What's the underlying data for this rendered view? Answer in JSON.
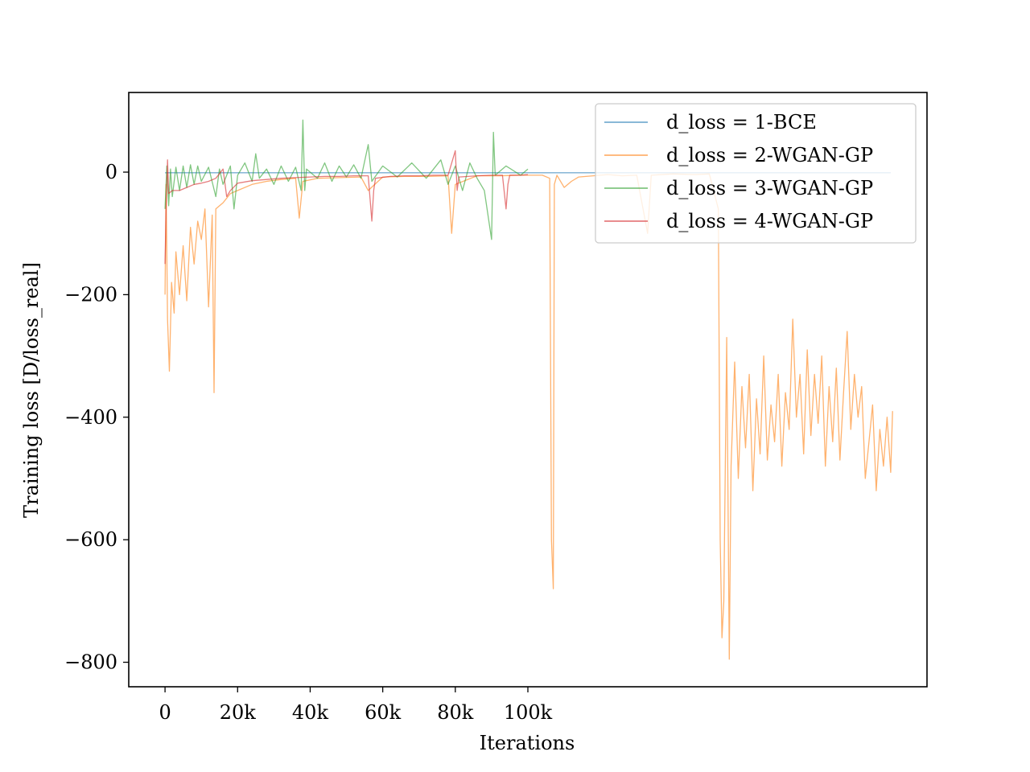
{
  "chart_data": {
    "type": "line",
    "title": "",
    "xlabel": "Iterations",
    "ylabel": "Training loss [D/loss_real]",
    "xlim": [
      -10000,
      210000
    ],
    "ylim": [
      -840,
      130
    ],
    "x_ticks": [
      {
        "value": 0,
        "label": "0"
      },
      {
        "value": 20000,
        "label": "20k"
      },
      {
        "value": 40000,
        "label": "40k"
      },
      {
        "value": 60000,
        "label": "60k"
      },
      {
        "value": 80000,
        "label": "80k"
      },
      {
        "value": 100000,
        "label": "100k"
      }
    ],
    "y_ticks": [
      {
        "value": 0,
        "label": "0"
      },
      {
        "value": -200,
        "label": "−200"
      },
      {
        "value": -400,
        "label": "−400"
      },
      {
        "value": -600,
        "label": "−600"
      },
      {
        "value": -800,
        "label": "−800"
      }
    ],
    "grid": false,
    "legend_position": "top-right",
    "series": [
      {
        "name": "d_loss = 1-BCE",
        "color": "#1f77b4",
        "points": [
          [
            0,
            -1
          ],
          [
            20000,
            -1
          ],
          [
            40000,
            -1
          ],
          [
            60000,
            -1
          ],
          [
            80000,
            -1
          ],
          [
            100000,
            -1
          ],
          [
            120000,
            -1
          ],
          [
            140000,
            -1
          ],
          [
            160000,
            -1
          ],
          [
            180000,
            -1
          ],
          [
            200000,
            -1
          ]
        ]
      },
      {
        "name": "d_loss = 2-WGAN-GP",
        "color": "#ff7f0e",
        "points": [
          [
            0,
            -200
          ],
          [
            300,
            -20
          ],
          [
            700,
            -240
          ],
          [
            1200,
            -325
          ],
          [
            1800,
            -180
          ],
          [
            2500,
            -230
          ],
          [
            3000,
            -130
          ],
          [
            4000,
            -200
          ],
          [
            5000,
            -120
          ],
          [
            6000,
            -210
          ],
          [
            7000,
            -90
          ],
          [
            8000,
            -150
          ],
          [
            9000,
            -80
          ],
          [
            10000,
            -110
          ],
          [
            11000,
            -60
          ],
          [
            12000,
            -220
          ],
          [
            13000,
            -70
          ],
          [
            13500,
            -360
          ],
          [
            14000,
            -60
          ],
          [
            16000,
            -50
          ],
          [
            18000,
            -35
          ],
          [
            20000,
            -30
          ],
          [
            24000,
            -20
          ],
          [
            28000,
            -15
          ],
          [
            32000,
            -12
          ],
          [
            36000,
            -10
          ],
          [
            37000,
            -75
          ],
          [
            38000,
            -15
          ],
          [
            42000,
            -10
          ],
          [
            48000,
            -9
          ],
          [
            54000,
            -8
          ],
          [
            56000,
            -30
          ],
          [
            60000,
            -8
          ],
          [
            66000,
            -7
          ],
          [
            72000,
            -7
          ],
          [
            78000,
            -6
          ],
          [
            79000,
            -100
          ],
          [
            80000,
            -20
          ],
          [
            86000,
            -6
          ],
          [
            92000,
            -6
          ],
          [
            98000,
            -5
          ],
          [
            104000,
            -5
          ],
          [
            106000,
            -10
          ],
          [
            106500,
            -600
          ],
          [
            107000,
            -680
          ],
          [
            107300,
            -20
          ],
          [
            108000,
            -5
          ],
          [
            110000,
            -25
          ],
          [
            112000,
            -15
          ],
          [
            114000,
            -8
          ],
          [
            118000,
            -6
          ],
          [
            122000,
            -4
          ],
          [
            126000,
            -6
          ],
          [
            130000,
            -5
          ],
          [
            133000,
            -100
          ],
          [
            134000,
            -5
          ],
          [
            140000,
            -3
          ],
          [
            146000,
            -4
          ],
          [
            150000,
            -3
          ],
          [
            152500,
            -60
          ],
          [
            153000,
            -600
          ],
          [
            153500,
            -760
          ],
          [
            154000,
            -700
          ],
          [
            154800,
            -270
          ],
          [
            155500,
            -795
          ],
          [
            156000,
            -480
          ],
          [
            157000,
            -310
          ],
          [
            158000,
            -500
          ],
          [
            159000,
            -350
          ],
          [
            160000,
            -450
          ],
          [
            161000,
            -330
          ],
          [
            162000,
            -520
          ],
          [
            163000,
            -370
          ],
          [
            164000,
            -460
          ],
          [
            165000,
            -300
          ],
          [
            166000,
            -470
          ],
          [
            167000,
            -380
          ],
          [
            168000,
            -440
          ],
          [
            169000,
            -330
          ],
          [
            170000,
            -480
          ],
          [
            171000,
            -360
          ],
          [
            172000,
            -420
          ],
          [
            173000,
            -240
          ],
          [
            174000,
            -400
          ],
          [
            175000,
            -330
          ],
          [
            176000,
            -460
          ],
          [
            177000,
            -290
          ],
          [
            178000,
            -430
          ],
          [
            179000,
            -330
          ],
          [
            180000,
            -410
          ],
          [
            181000,
            -300
          ],
          [
            182000,
            -480
          ],
          [
            183000,
            -350
          ],
          [
            184000,
            -440
          ],
          [
            185000,
            -320
          ],
          [
            186000,
            -470
          ],
          [
            187000,
            -360
          ],
          [
            188000,
            -260
          ],
          [
            189000,
            -420
          ],
          [
            190000,
            -330
          ],
          [
            191000,
            -400
          ],
          [
            192000,
            -350
          ],
          [
            193000,
            -500
          ],
          [
            194000,
            -440
          ],
          [
            195000,
            -380
          ],
          [
            196000,
            -520
          ],
          [
            197000,
            -420
          ],
          [
            198000,
            -480
          ],
          [
            199000,
            -400
          ],
          [
            200000,
            -490
          ],
          [
            200500,
            -390
          ]
        ]
      },
      {
        "name": "d_loss = 3-WGAN-GP",
        "color": "#2ca02c",
        "points": [
          [
            0,
            -60
          ],
          [
            500,
            10
          ],
          [
            1000,
            -55
          ],
          [
            1500,
            5
          ],
          [
            2000,
            -40
          ],
          [
            3000,
            8
          ],
          [
            4000,
            -30
          ],
          [
            5000,
            10
          ],
          [
            6000,
            -25
          ],
          [
            7000,
            12
          ],
          [
            8000,
            -20
          ],
          [
            9000,
            10
          ],
          [
            10000,
            -15
          ],
          [
            12000,
            8
          ],
          [
            14000,
            -40
          ],
          [
            15000,
            5
          ],
          [
            16000,
            -20
          ],
          [
            18000,
            10
          ],
          [
            19000,
            -60
          ],
          [
            20000,
            -5
          ],
          [
            22000,
            15
          ],
          [
            24000,
            -15
          ],
          [
            25000,
            30
          ],
          [
            26000,
            -10
          ],
          [
            28000,
            5
          ],
          [
            30000,
            -20
          ],
          [
            32000,
            10
          ],
          [
            34000,
            -15
          ],
          [
            36000,
            8
          ],
          [
            37500,
            -30
          ],
          [
            38000,
            85
          ],
          [
            38500,
            -30
          ],
          [
            39000,
            5
          ],
          [
            42000,
            -10
          ],
          [
            44000,
            15
          ],
          [
            46000,
            -15
          ],
          [
            48000,
            10
          ],
          [
            50000,
            -8
          ],
          [
            52000,
            12
          ],
          [
            54000,
            -10
          ],
          [
            56000,
            45
          ],
          [
            57000,
            -15
          ],
          [
            60000,
            10
          ],
          [
            64000,
            -8
          ],
          [
            68000,
            15
          ],
          [
            72000,
            -10
          ],
          [
            76000,
            20
          ],
          [
            78000,
            -20
          ],
          [
            80000,
            10
          ],
          [
            82000,
            -30
          ],
          [
            84000,
            15
          ],
          [
            86000,
            -10
          ],
          [
            88000,
            -30
          ],
          [
            90000,
            -110
          ],
          [
            90500,
            65
          ],
          [
            91000,
            -5
          ],
          [
            94000,
            10
          ],
          [
            98000,
            -5
          ],
          [
            100000,
            5
          ]
        ]
      },
      {
        "name": "d_loss = 4-WGAN-GP",
        "color": "#d62728",
        "points": [
          [
            0,
            -150
          ],
          [
            300,
            -60
          ],
          [
            700,
            20
          ],
          [
            1000,
            -35
          ],
          [
            2000,
            -30
          ],
          [
            4000,
            -30
          ],
          [
            6000,
            -25
          ],
          [
            8000,
            -20
          ],
          [
            10000,
            -18
          ],
          [
            12000,
            -15
          ],
          [
            14000,
            -10
          ],
          [
            16000,
            5
          ],
          [
            17000,
            -40
          ],
          [
            18000,
            -30
          ],
          [
            20000,
            -18
          ],
          [
            24000,
            -14
          ],
          [
            28000,
            -12
          ],
          [
            32000,
            -10
          ],
          [
            36000,
            -9
          ],
          [
            40000,
            -8
          ],
          [
            44000,
            -7
          ],
          [
            48000,
            -7
          ],
          [
            52000,
            -6
          ],
          [
            56000,
            -6
          ],
          [
            57000,
            -80
          ],
          [
            57500,
            -30
          ],
          [
            58000,
            -10
          ],
          [
            62000,
            -7
          ],
          [
            66000,
            -6
          ],
          [
            70000,
            -6
          ],
          [
            74000,
            -5
          ],
          [
            78000,
            -5
          ],
          [
            80000,
            35
          ],
          [
            80500,
            -30
          ],
          [
            81000,
            -8
          ],
          [
            86000,
            -6
          ],
          [
            90000,
            -5
          ],
          [
            93000,
            -5
          ],
          [
            94000,
            -60
          ],
          [
            94500,
            -20
          ],
          [
            95000,
            -5
          ],
          [
            98000,
            -5
          ],
          [
            100000,
            -4
          ]
        ]
      }
    ]
  }
}
